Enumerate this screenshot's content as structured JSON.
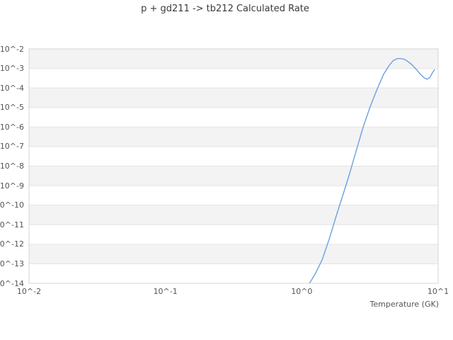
{
  "chart_data": {
    "type": "line",
    "title": "p + gd211 -> tb212 Calculated Rate",
    "xlabel": "Temperature (GK)",
    "ylabel": "",
    "x_scale": "log",
    "y_scale": "log",
    "xlim": [
      0.01,
      10
    ],
    "ylim": [
      1e-14,
      0.01
    ],
    "x_tick_labels": [
      "10^-2",
      "10^-1",
      "10^0",
      "10^1"
    ],
    "x_tick_exponents": [
      -2,
      -1,
      0,
      1
    ],
    "y_tick_labels": [
      "10^-2",
      "10^-3",
      "10^-4",
      "10^-5",
      "10^-6",
      "10^-7",
      "10^-8",
      "10^-9",
      "10^-10",
      "10^-11",
      "10^-12",
      "10^-13",
      "10^-14"
    ],
    "y_tick_exponents": [
      -2,
      -3,
      -4,
      -5,
      -6,
      -7,
      -8,
      -9,
      -10,
      -11,
      -12,
      -13,
      -14
    ],
    "grid": "horizontal gridlines with alternating decade bands",
    "legend": "none",
    "series": [
      {
        "name": "calculated-rate",
        "points": [
          [
            1.14,
            1e-14
          ],
          [
            1.26,
            3.2e-14
          ],
          [
            1.41,
            1.6e-13
          ],
          [
            1.58,
            1.6e-12
          ],
          [
            1.78,
            2.5e-11
          ],
          [
            2.0,
            3.2e-10
          ],
          [
            2.24,
            4e-09
          ],
          [
            2.51,
            6.3e-08
          ],
          [
            2.82,
            1e-06
          ],
          [
            3.16,
            1e-05
          ],
          [
            3.55,
            7.9e-05
          ],
          [
            3.98,
            0.0005
          ],
          [
            4.37,
            0.0014
          ],
          [
            4.68,
            0.0025
          ],
          [
            5.01,
            0.0032
          ],
          [
            5.25,
            0.0032
          ],
          [
            5.62,
            0.003
          ],
          [
            6.03,
            0.0022
          ],
          [
            6.46,
            0.0015
          ],
          [
            6.92,
            0.00089
          ],
          [
            7.41,
            0.0005
          ],
          [
            7.94,
            0.00032
          ],
          [
            8.32,
            0.00028
          ],
          [
            8.71,
            0.00035
          ],
          [
            9.12,
            0.00063
          ],
          [
            9.44,
            0.00089
          ]
        ]
      }
    ],
    "colors": {
      "line": "#6ba0dc",
      "band": "#f3f3f3",
      "gridline": "#e3e3e3",
      "border": "#d5d5d5",
      "tick_text": "#555555",
      "title_text": "#3a3a3a",
      "background": "#ffffff"
    }
  }
}
